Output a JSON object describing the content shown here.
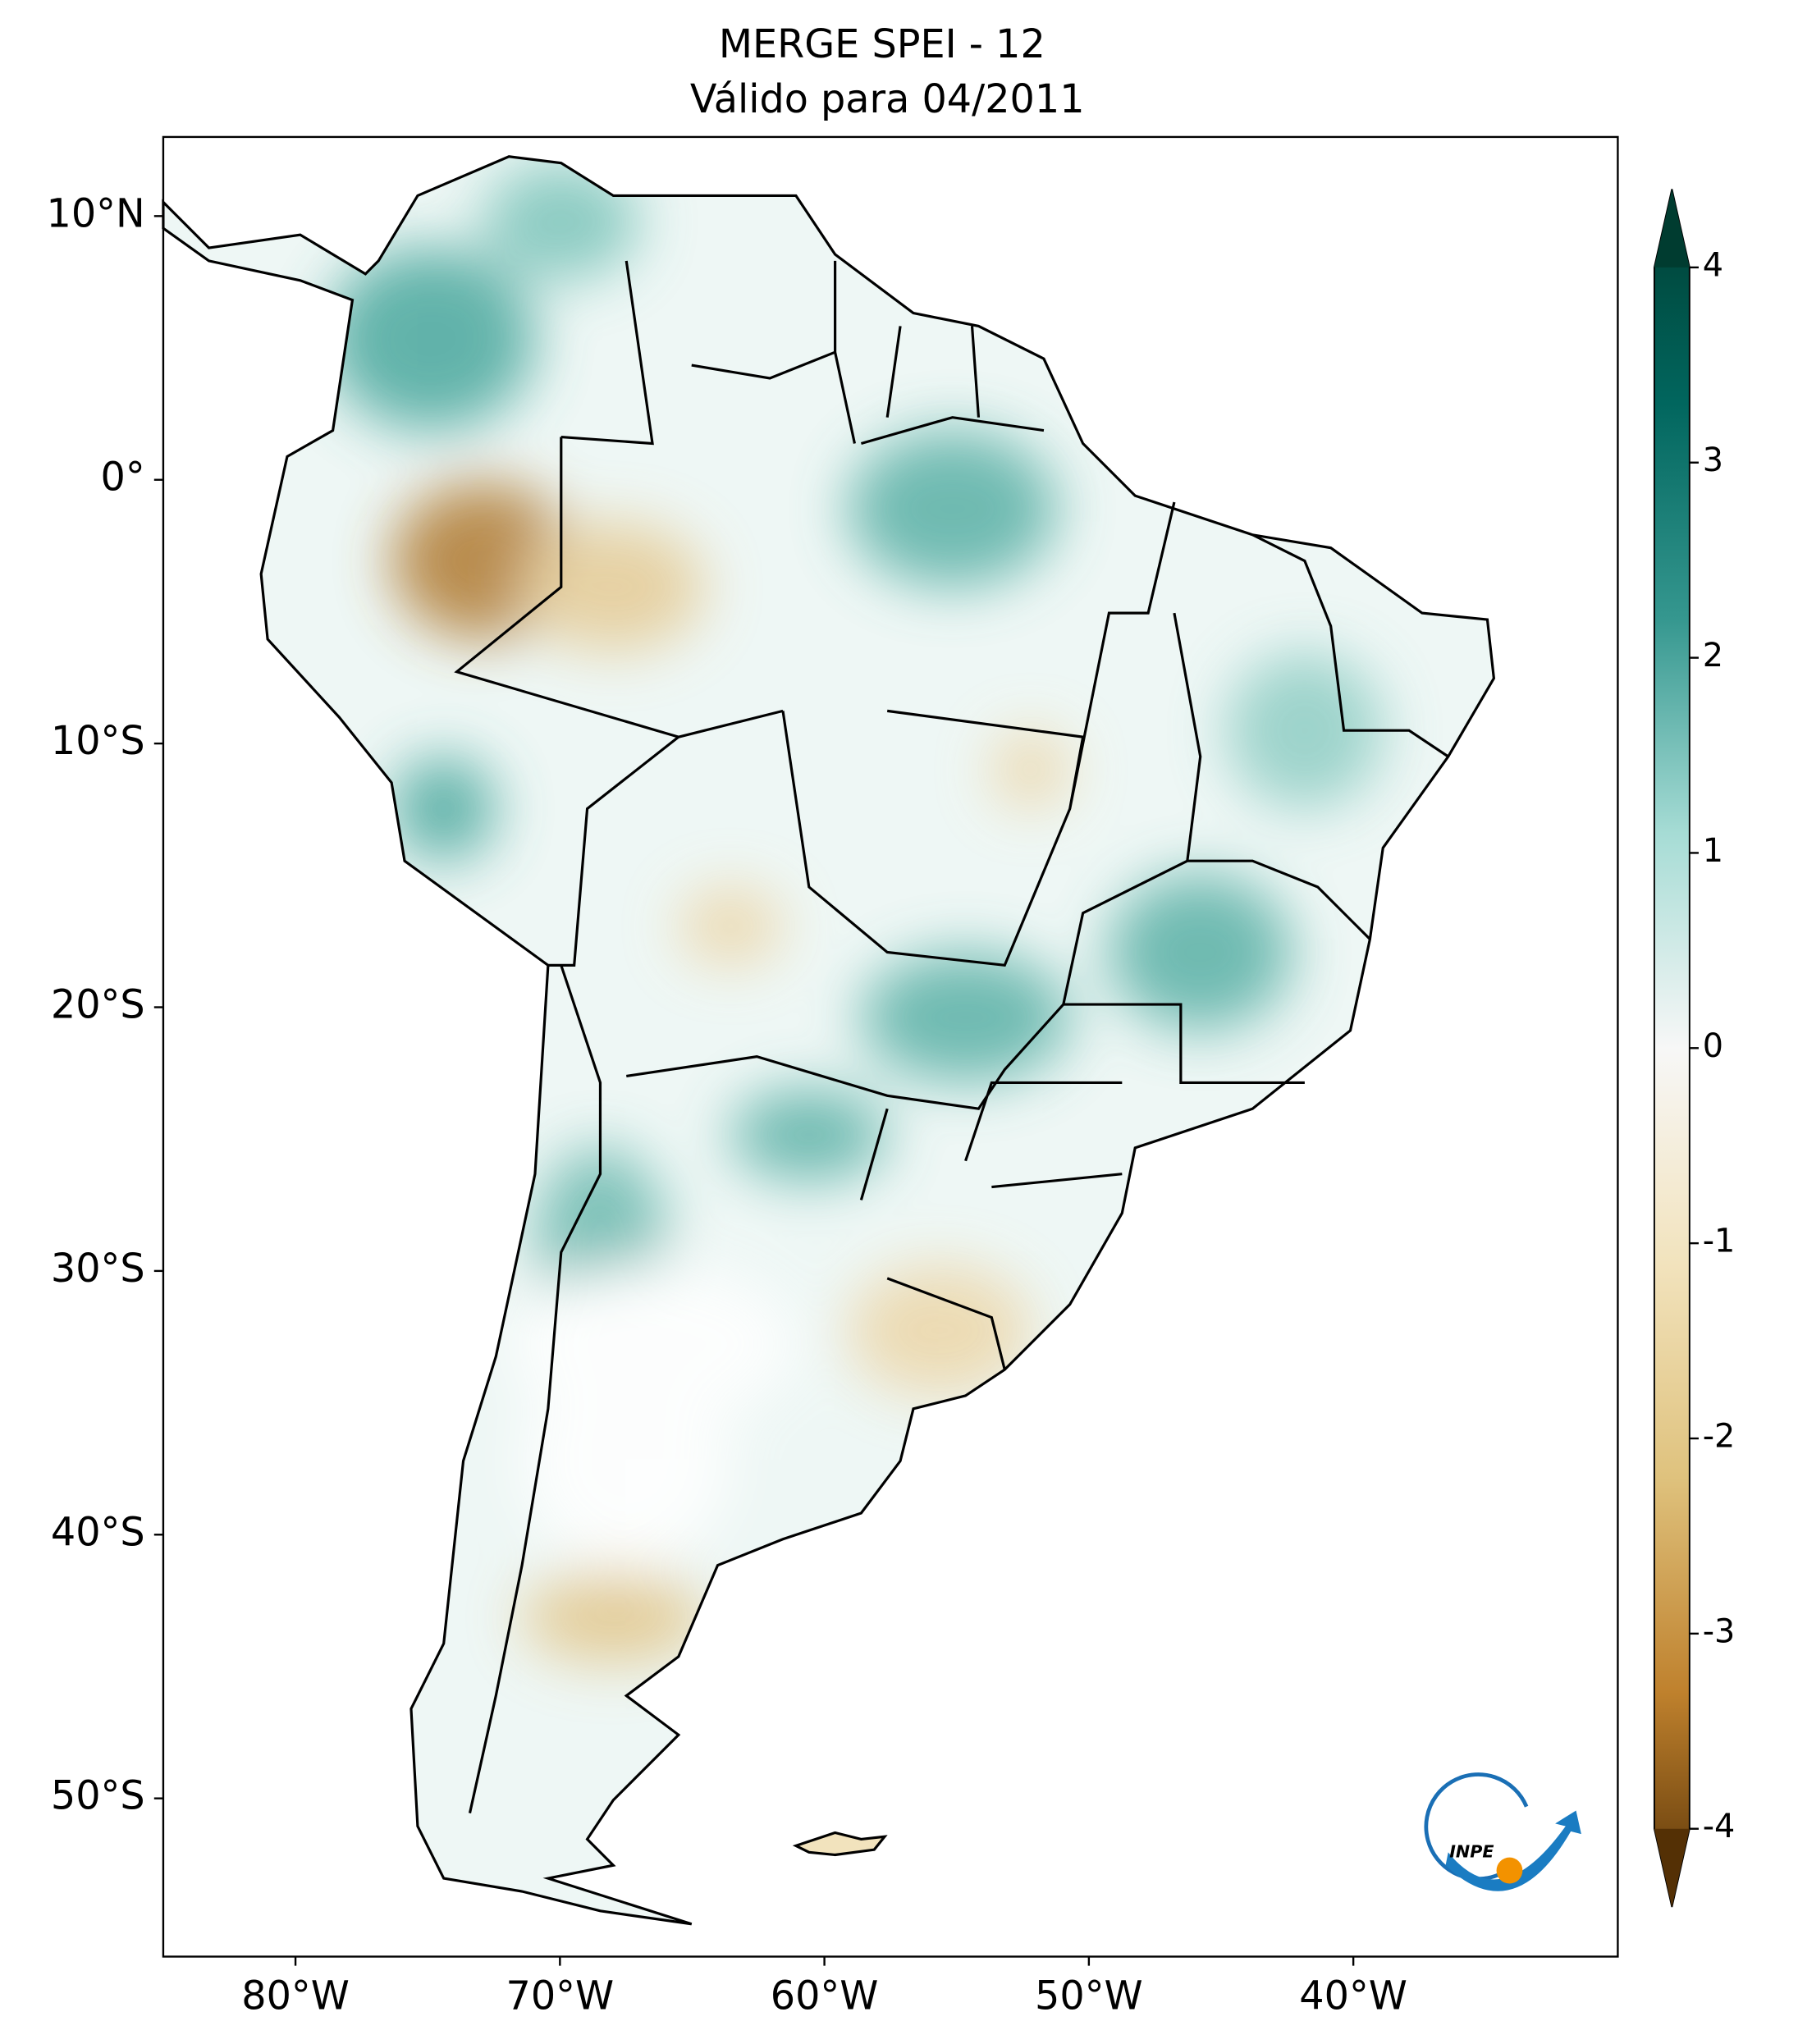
{
  "chart_data": {
    "type": "map",
    "title": "MERGE   SPEI - 12",
    "subtitle": "Válido para 04/2011",
    "xlim": [
      -85,
      -30
    ],
    "ylim": [
      -56,
      13
    ],
    "xticks": [
      {
        "value": -80,
        "label": "80°W"
      },
      {
        "value": -70,
        "label": "70°W"
      },
      {
        "value": -60,
        "label": "60°W"
      },
      {
        "value": -50,
        "label": "50°W"
      },
      {
        "value": -40,
        "label": "40°W"
      }
    ],
    "yticks": [
      {
        "value": 10,
        "label": "10°N"
      },
      {
        "value": 0,
        "label": "0°"
      },
      {
        "value": -10,
        "label": "10°S"
      },
      {
        "value": -20,
        "label": "20°S"
      },
      {
        "value": -30,
        "label": "30°S"
      },
      {
        "value": -40,
        "label": "40°S"
      },
      {
        "value": -50,
        "label": "50°S"
      }
    ],
    "colorbar": {
      "lim": [
        -4,
        4
      ],
      "ticks": [
        4,
        3,
        2,
        1,
        0,
        -1,
        -2,
        -3,
        -4
      ]
    },
    "logo_text": "INPE"
  }
}
